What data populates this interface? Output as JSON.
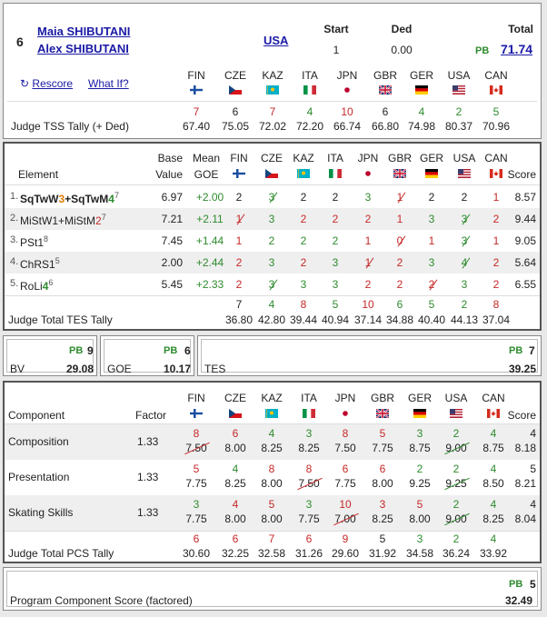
{
  "header": {
    "rank": "6",
    "skater1": "Maia SHIBUTANI",
    "skater2": "Alex SHIBUTANI",
    "nation": "USA",
    "start_label": "Start",
    "start_value": "1",
    "ded_label": "Ded",
    "ded_value": "0.00",
    "total_label": "Total",
    "pb": "PB",
    "total_value": "71.74",
    "rescore": "Rescore",
    "whatif": "What If?",
    "tss_label": "Judge TSS Tally (+ Ded)"
  },
  "judges": [
    {
      "code": "FIN",
      "flag": "fin"
    },
    {
      "code": "CZE",
      "flag": "cze"
    },
    {
      "code": "KAZ",
      "flag": "kaz"
    },
    {
      "code": "ITA",
      "flag": "ita"
    },
    {
      "code": "JPN",
      "flag": "jpn"
    },
    {
      "code": "GBR",
      "flag": "gbr"
    },
    {
      "code": "GER",
      "flag": "ger"
    },
    {
      "code": "USA",
      "flag": "usa"
    },
    {
      "code": "CAN",
      "flag": "can"
    }
  ],
  "tss_ranks": [
    "7",
    "6",
    "7",
    "4",
    "10",
    "6",
    "4",
    "2",
    "5"
  ],
  "tss_rank_colors": [
    "red",
    "black",
    "red",
    "green",
    "red",
    "black",
    "green",
    "green",
    "green"
  ],
  "tss_values": [
    "67.40",
    "75.05",
    "72.02",
    "72.20",
    "66.74",
    "66.80",
    "74.98",
    "80.37",
    "70.96"
  ],
  "elements_header": {
    "element": "Element",
    "base1": "Base",
    "base2": "Value",
    "mean1": "Mean",
    "mean2": "GOE",
    "score": "Score"
  },
  "elements": [
    {
      "num": "1.",
      "name_parts": [
        [
          "SqTwW",
          "b"
        ],
        [
          "3",
          "orange-b"
        ],
        [
          "+SqTwM",
          "b"
        ],
        [
          "4",
          "green-b"
        ],
        [
          "7",
          "sup"
        ]
      ],
      "base": "6.97",
      "goe": "+2.00",
      "marks": [
        "2",
        "3",
        "2",
        "2",
        "3",
        "1",
        "2",
        "2",
        "1"
      ],
      "colors": [
        "black",
        "green",
        "black",
        "black",
        "green",
        "red",
        "black",
        "black",
        "red"
      ],
      "strike": [
        false,
        true,
        false,
        false,
        false,
        true,
        false,
        false,
        false
      ],
      "score": "8.57"
    },
    {
      "num": "2.",
      "name_parts": [
        [
          "MiStW1+MiStM",
          ""
        ],
        [
          "2",
          "red"
        ],
        [
          "7",
          "sup"
        ]
      ],
      "base": "7.21",
      "goe": "+2.11",
      "marks": [
        "1",
        "3",
        "2",
        "2",
        "2",
        "1",
        "3",
        "3",
        "2"
      ],
      "colors": [
        "red",
        "green",
        "red",
        "red",
        "red",
        "red",
        "green",
        "green",
        "red"
      ],
      "strike": [
        true,
        false,
        false,
        false,
        false,
        false,
        false,
        true,
        false
      ],
      "score": "9.44"
    },
    {
      "num": "3.",
      "name_parts": [
        [
          "PSt1",
          ""
        ],
        [
          "8",
          "sup"
        ]
      ],
      "base": "7.45",
      "goe": "+1.44",
      "marks": [
        "1",
        "2",
        "2",
        "2",
        "1",
        "0",
        "1",
        "3",
        "1"
      ],
      "colors": [
        "red",
        "green",
        "green",
        "green",
        "red",
        "red",
        "red",
        "green",
        "red"
      ],
      "strike": [
        false,
        false,
        false,
        false,
        false,
        true,
        false,
        true,
        false
      ],
      "score": "9.05"
    },
    {
      "num": "4.",
      "name_parts": [
        [
          "ChRS1",
          ""
        ],
        [
          "5",
          "sup"
        ]
      ],
      "base": "2.00",
      "goe": "+2.44",
      "marks": [
        "2",
        "3",
        "2",
        "3",
        "1",
        "2",
        "3",
        "4",
        "2"
      ],
      "colors": [
        "red",
        "green",
        "red",
        "green",
        "red",
        "red",
        "green",
        "green",
        "red"
      ],
      "strike": [
        false,
        false,
        false,
        false,
        true,
        false,
        false,
        true,
        false
      ],
      "score": "5.64"
    },
    {
      "num": "5.",
      "name_parts": [
        [
          "RoLi",
          ""
        ],
        [
          "4",
          "green-b"
        ],
        [
          "6",
          "sup"
        ]
      ],
      "base": "5.45",
      "goe": "+2.33",
      "marks": [
        "2",
        "3",
        "3",
        "3",
        "2",
        "2",
        "2",
        "3",
        "2"
      ],
      "colors": [
        "red",
        "green",
        "green",
        "green",
        "red",
        "red",
        "red",
        "green",
        "red"
      ],
      "strike": [
        false,
        true,
        false,
        false,
        false,
        false,
        true,
        false,
        false
      ],
      "score": "6.55"
    }
  ],
  "tes_tally": {
    "label": "Judge Total TES Tally",
    "ranks": [
      "7",
      "4",
      "8",
      "5",
      "10",
      "6",
      "5",
      "2",
      "8"
    ],
    "rank_colors": [
      "black",
      "green",
      "red",
      "green",
      "red",
      "green",
      "green",
      "green",
      "red"
    ],
    "values": [
      "36.80",
      "42.80",
      "39.44",
      "40.94",
      "37.14",
      "34.88",
      "40.40",
      "44.13",
      "37.04"
    ]
  },
  "summary": {
    "bv_label": "BV",
    "bv_pb": "PB",
    "bv_rank": "9",
    "bv_value": "29.08",
    "goe_label": "GOE",
    "goe_pb": "PB",
    "goe_rank": "6",
    "goe_value": "10.17",
    "tes_label": "TES",
    "tes_pb": "PB",
    "tes_rank": "7",
    "tes_value": "39.25"
  },
  "components_header": {
    "component": "Component",
    "factor": "Factor",
    "score": "Score"
  },
  "components": [
    {
      "name": "Composition",
      "factor": "1.33",
      "ranks": [
        "8",
        "6",
        "4",
        "3",
        "8",
        "5",
        "3",
        "2",
        "4"
      ],
      "rank_colors": [
        "red",
        "red",
        "green",
        "green",
        "red",
        "red",
        "green",
        "green",
        "green"
      ],
      "values": [
        "7.50",
        "8.00",
        "8.25",
        "8.25",
        "7.50",
        "7.75",
        "8.75",
        "9.00",
        "8.75"
      ],
      "strike": [
        true,
        false,
        false,
        false,
        false,
        false,
        false,
        true,
        false
      ],
      "score_rank": "4",
      "score": "8.18"
    },
    {
      "name": "Presentation",
      "factor": "1.33",
      "ranks": [
        "5",
        "4",
        "8",
        "8",
        "6",
        "6",
        "2",
        "2",
        "4"
      ],
      "rank_colors": [
        "red",
        "green",
        "red",
        "red",
        "red",
        "red",
        "green",
        "green",
        "green"
      ],
      "values": [
        "7.75",
        "8.25",
        "8.00",
        "7.50",
        "7.75",
        "8.00",
        "9.25",
        "9.25",
        "8.50"
      ],
      "strike": [
        false,
        false,
        false,
        true,
        false,
        false,
        false,
        true,
        false
      ],
      "score_rank": "5",
      "score": "8.21"
    },
    {
      "name": "Skating Skills",
      "factor": "1.33",
      "ranks": [
        "3",
        "4",
        "5",
        "3",
        "10",
        "3",
        "5",
        "2",
        "4"
      ],
      "rank_colors": [
        "green",
        "red",
        "red",
        "green",
        "red",
        "red",
        "red",
        "green",
        "green"
      ],
      "values": [
        "7.75",
        "8.00",
        "8.00",
        "7.75",
        "7.00",
        "8.25",
        "8.00",
        "9.00",
        "8.25"
      ],
      "strike": [
        false,
        false,
        false,
        false,
        true,
        false,
        false,
        true,
        false
      ],
      "score_rank": "4",
      "score": "8.04"
    }
  ],
  "pcs_tally": {
    "label": "Judge Total PCS Tally",
    "ranks": [
      "6",
      "6",
      "7",
      "6",
      "9",
      "5",
      "3",
      "2",
      "4"
    ],
    "rank_colors": [
      "red",
      "red",
      "red",
      "red",
      "red",
      "black",
      "green",
      "green",
      "green"
    ],
    "values": [
      "30.60",
      "32.25",
      "32.58",
      "31.26",
      "29.60",
      "31.92",
      "34.58",
      "36.24",
      "33.92"
    ]
  },
  "pcs_summary": {
    "label": "Program Component Score (factored)",
    "pb": "PB",
    "rank": "5",
    "value": "32.49"
  }
}
